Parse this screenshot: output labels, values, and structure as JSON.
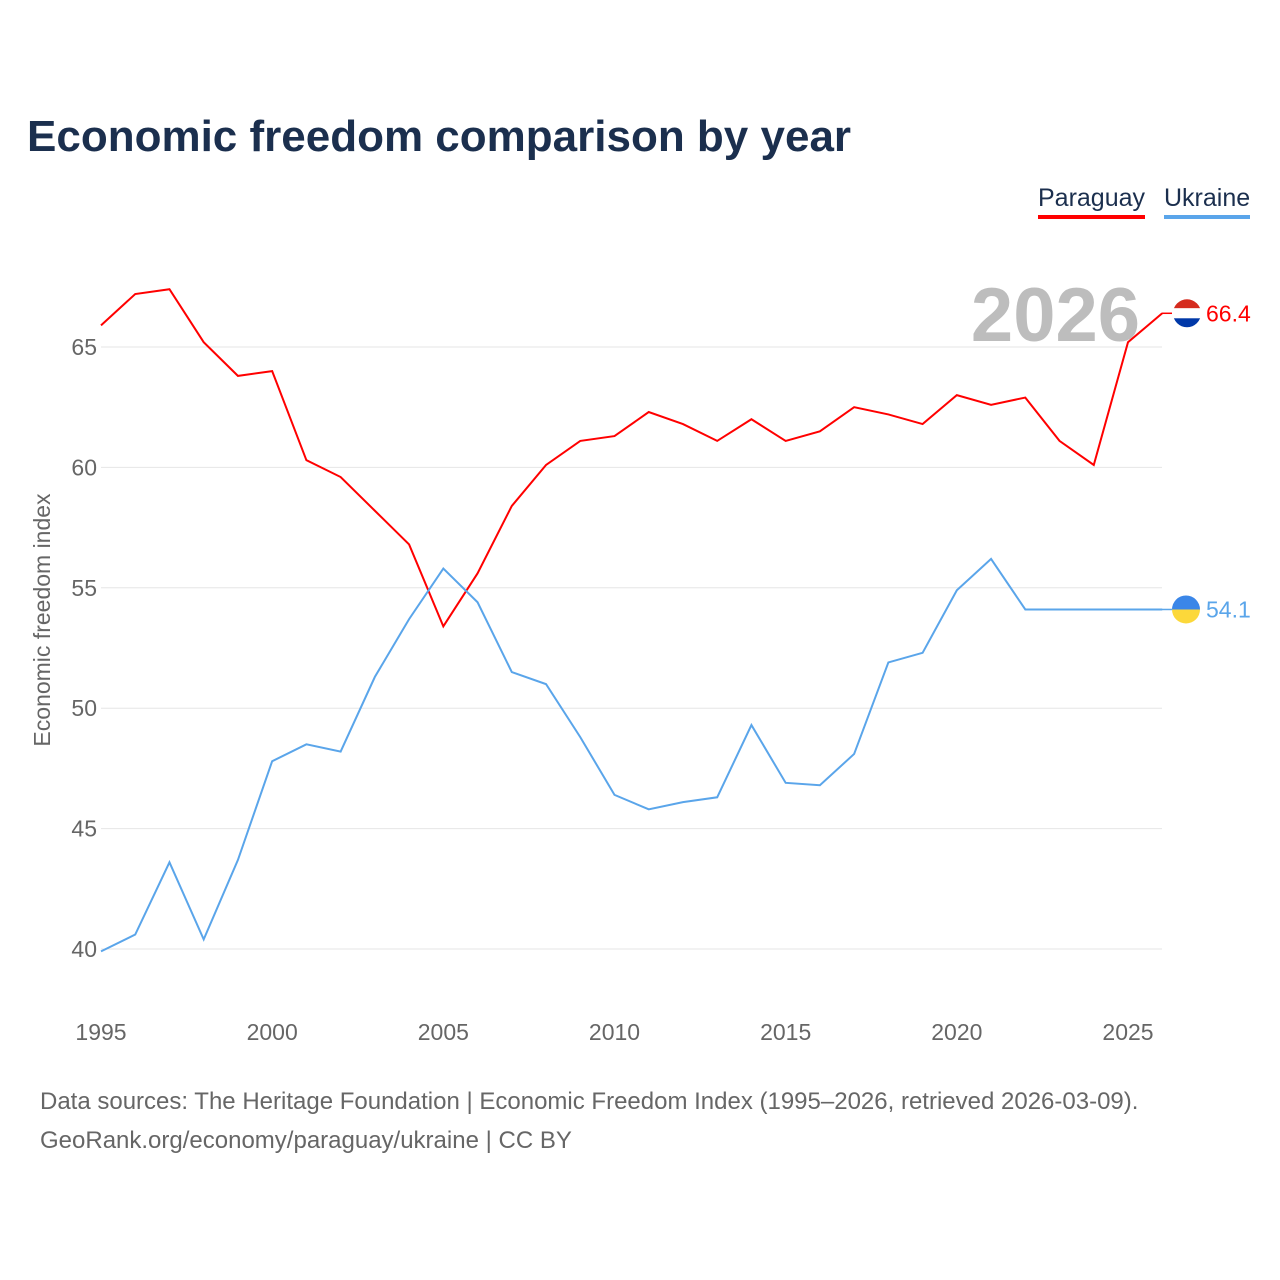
{
  "title": "Economic freedom comparison by year",
  "year_watermark": "2026",
  "colors": {
    "Paraguay": "#ff0000",
    "Ukraine": "#5aa5ea",
    "grid": "#e6e6e6",
    "axis_text": "#666666"
  },
  "footer": {
    "line1": "Data sources: The Heritage Foundation | Economic Freedom Index (1995–2026, retrieved 2026-03-09).",
    "line2": "GeoRank.org/economy/paraguay/ukraine | CC BY"
  },
  "chart_data": {
    "type": "line",
    "title": "Economic freedom comparison by year",
    "xlabel": "",
    "ylabel": "Economic freedom index",
    "xlim": [
      1995,
      2026
    ],
    "ylim": [
      40,
      67.5
    ],
    "grid": true,
    "legend_placement": "top-right",
    "x_ticks": [
      "1995",
      "2000",
      "2005",
      "2010",
      "2015",
      "2020",
      "2025"
    ],
    "y_ticks": [
      "40",
      "45",
      "50",
      "55",
      "60",
      "65"
    ],
    "x": [
      1995,
      1996,
      1997,
      1998,
      1999,
      2000,
      2001,
      2002,
      2003,
      2004,
      2005,
      2006,
      2007,
      2008,
      2009,
      2010,
      2011,
      2012,
      2013,
      2014,
      2015,
      2016,
      2017,
      2018,
      2019,
      2020,
      2021,
      2022,
      2023,
      2024,
      2025,
      2026
    ],
    "series": [
      {
        "name": "Paraguay",
        "end_label": "66.4",
        "values": [
          65.9,
          67.2,
          67.4,
          65.2,
          63.8,
          64.0,
          60.3,
          59.6,
          58.2,
          56.8,
          53.4,
          55.6,
          58.4,
          60.1,
          61.1,
          61.3,
          62.3,
          61.8,
          61.1,
          62.0,
          61.1,
          61.5,
          62.5,
          62.2,
          61.8,
          63.0,
          62.6,
          62.9,
          61.1,
          60.1,
          65.2,
          66.4
        ]
      },
      {
        "name": "Ukraine",
        "end_label": "54.1",
        "values": [
          39.9,
          40.6,
          43.6,
          40.4,
          43.7,
          47.8,
          48.5,
          48.2,
          51.3,
          53.7,
          55.8,
          54.4,
          51.5,
          51.0,
          48.8,
          46.4,
          45.8,
          46.1,
          46.3,
          49.3,
          46.9,
          46.8,
          48.1,
          51.9,
          52.3,
          54.9,
          56.2,
          54.1,
          54.1,
          54.1,
          54.1,
          54.1
        ]
      }
    ]
  }
}
